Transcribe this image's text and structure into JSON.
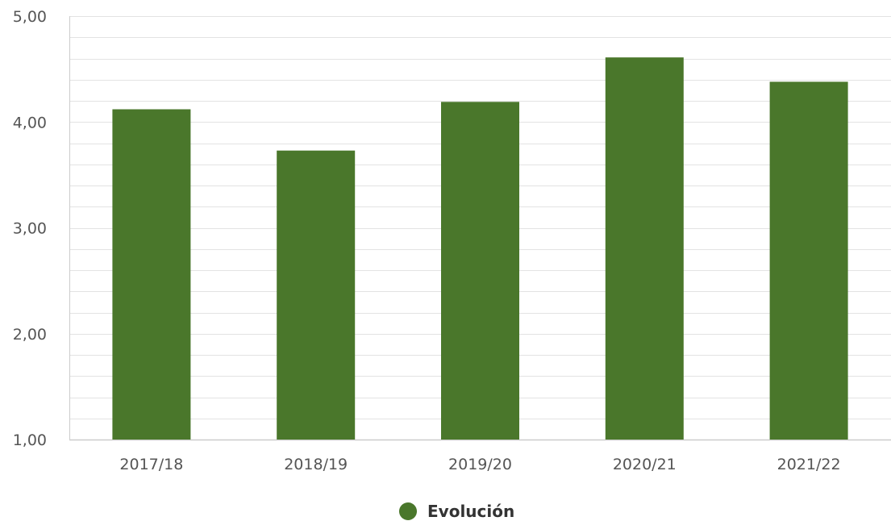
{
  "chart_data": {
    "type": "bar",
    "categories": [
      "2017/18",
      "2018/19",
      "2019/20",
      "2020/21",
      "2021/22"
    ],
    "series": [
      {
        "name": "Evolución",
        "values": [
          4.12,
          3.73,
          4.19,
          4.61,
          4.38
        ]
      }
    ],
    "ylim": [
      1,
      5
    ],
    "yticks": [
      1,
      2,
      3,
      4,
      5
    ],
    "ytick_labels": [
      "1,00",
      "2,00",
      "3,00",
      "4,00",
      "5,00"
    ],
    "minor_gridlines_per_major": 5,
    "grid": true,
    "legend_position": "bottom-center",
    "bar_color": "#4a772b",
    "grid_color": "#e3e3e3",
    "axis_color": "#cccccc"
  }
}
